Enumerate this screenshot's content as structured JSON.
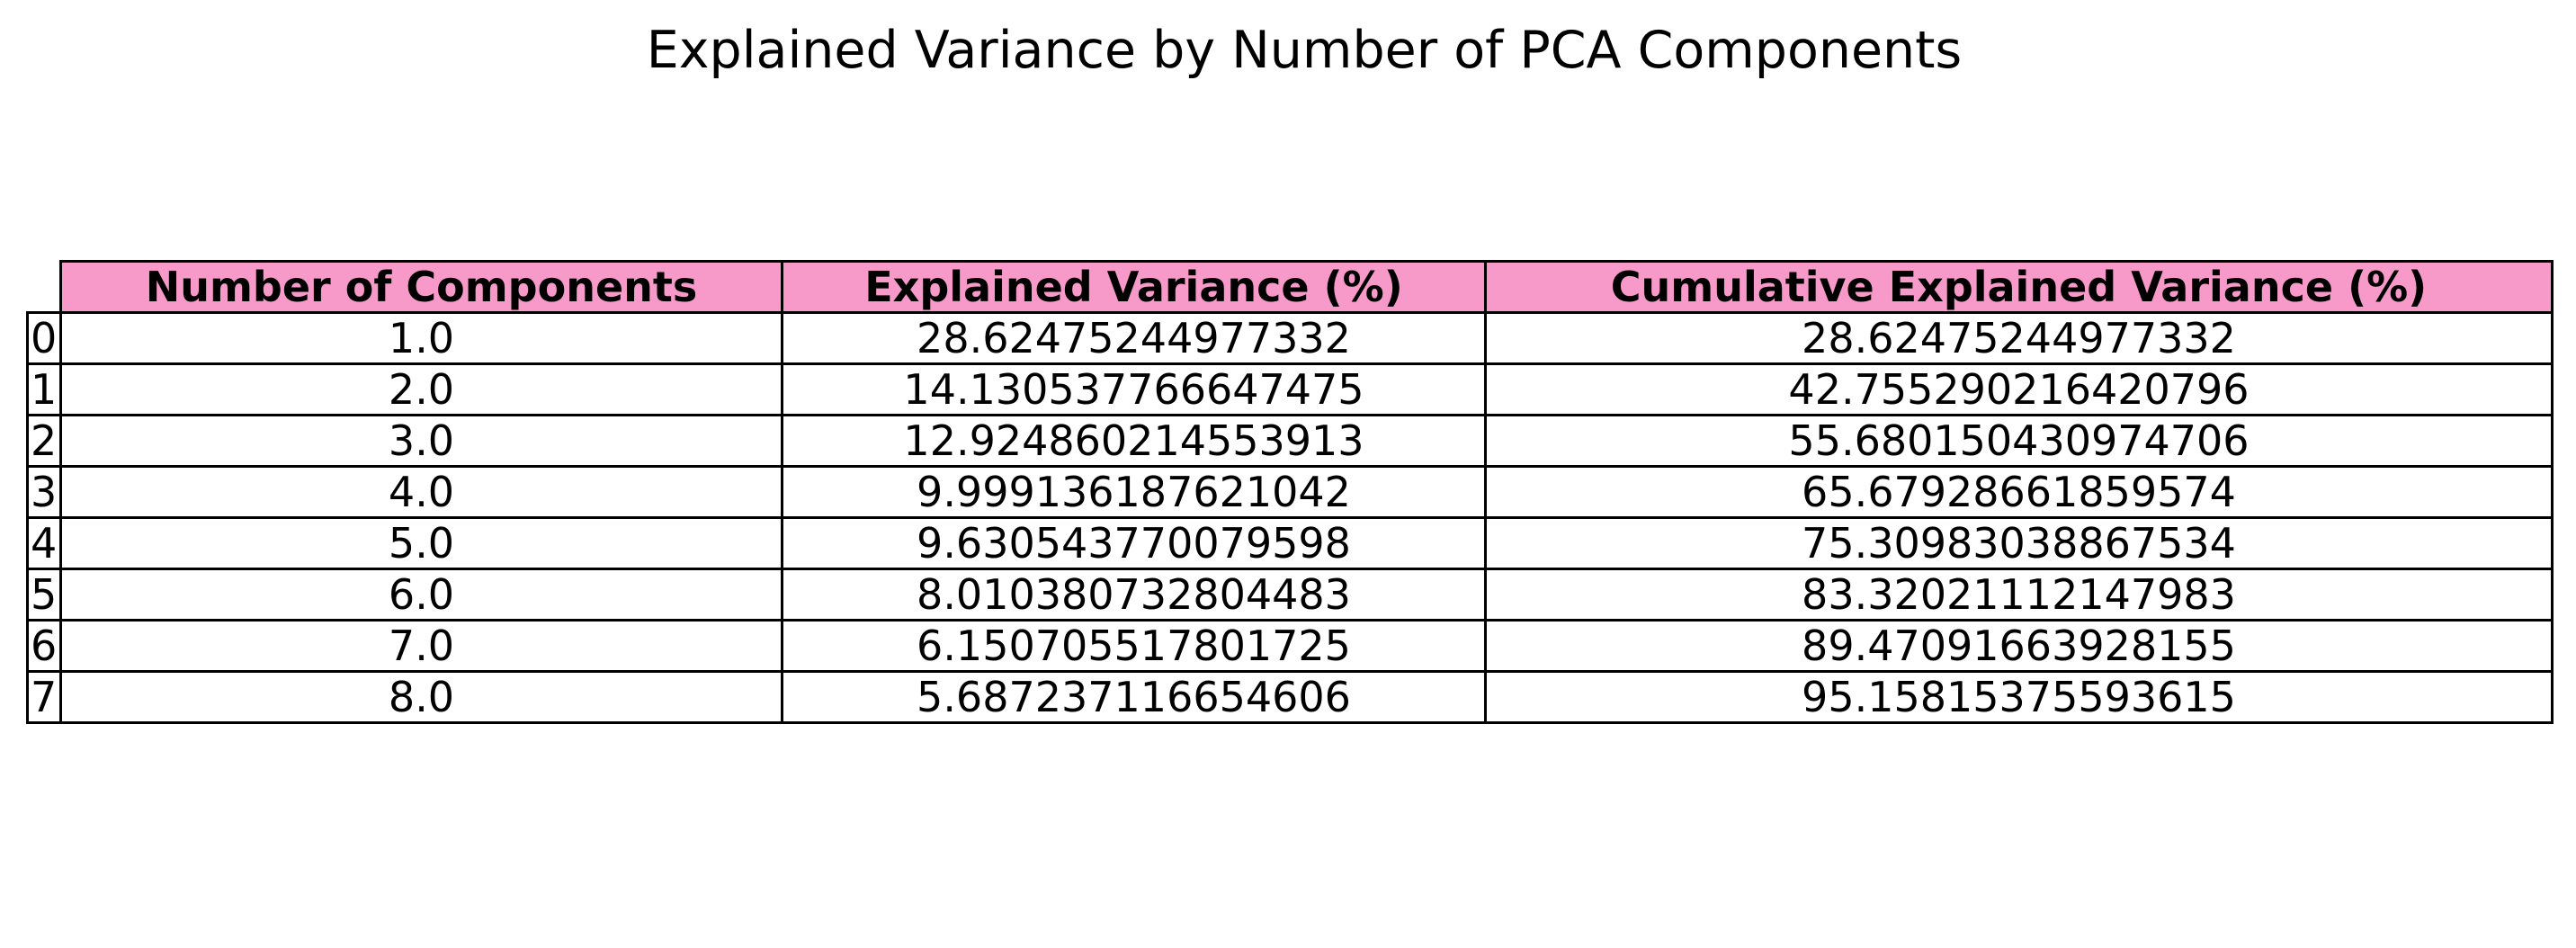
{
  "colors": {
    "header_background": "#f79ac9",
    "border": "#000000",
    "background": "#ffffff"
  },
  "chart_data": {
    "type": "table",
    "title": "Explained Variance by Number of PCA Components",
    "columns": [
      "Number of Components",
      "Explained Variance (%)",
      "Cumulative Explained Variance (%)"
    ],
    "rows": [
      {
        "index": "0",
        "cells": [
          "1.0",
          "28.62475244977332",
          "28.62475244977332"
        ]
      },
      {
        "index": "1",
        "cells": [
          "2.0",
          "14.130537766647475",
          "42.755290216420796"
        ]
      },
      {
        "index": "2",
        "cells": [
          "3.0",
          "12.924860214553913",
          "55.680150430974706"
        ]
      },
      {
        "index": "3",
        "cells": [
          "4.0",
          "9.999136187621042",
          "65.67928661859574"
        ]
      },
      {
        "index": "4",
        "cells": [
          "5.0",
          "9.630543770079598",
          "75.30983038867534"
        ]
      },
      {
        "index": "5",
        "cells": [
          "6.0",
          "8.010380732804483",
          "83.32021112147983"
        ]
      },
      {
        "index": "6",
        "cells": [
          "7.0",
          "6.150705517801725",
          "89.47091663928155"
        ]
      },
      {
        "index": "7",
        "cells": [
          "8.0",
          "5.687237116654606",
          "95.15815375593615"
        ]
      }
    ]
  }
}
